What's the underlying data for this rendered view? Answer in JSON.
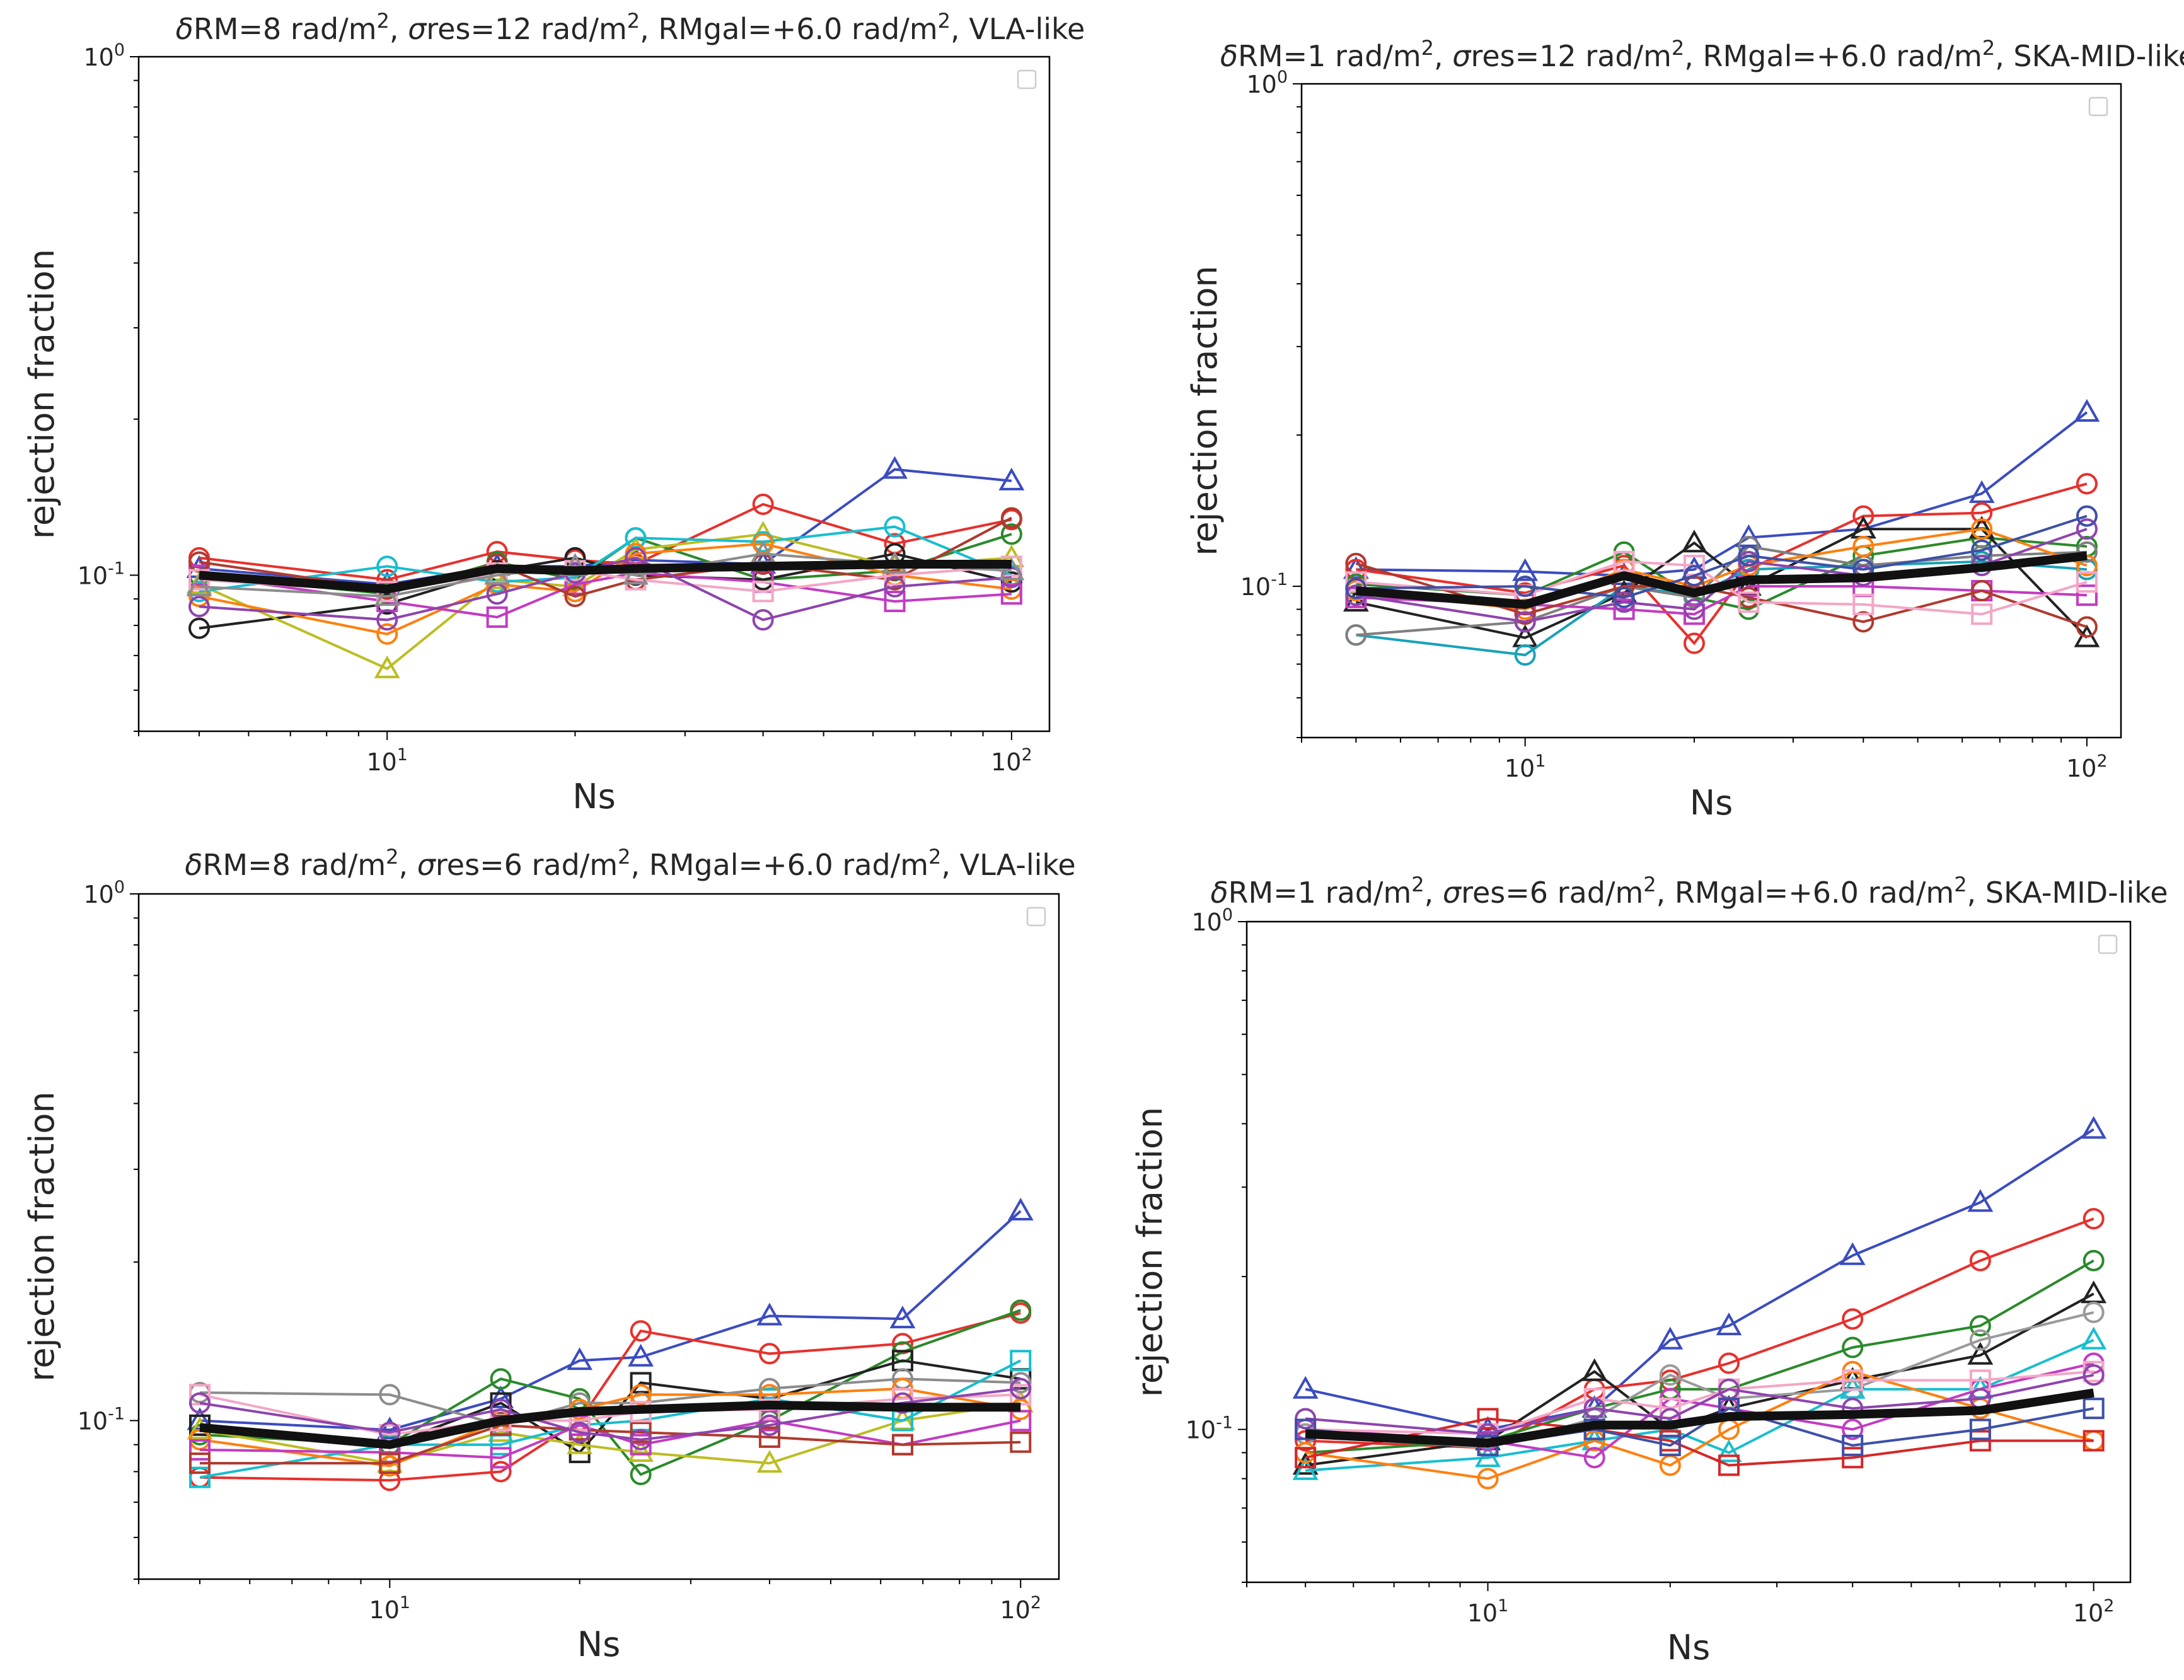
{
  "figure": {
    "description": "Four log-log panels of rejection fraction vs Ns"
  },
  "chart_data": [
    {
      "type": "line",
      "title": "δRM=8 rad/m², σres=12 rad/m², RMgal=+6.0 rad/m², VLA-like",
      "title_parts": {
        "drm": "8",
        "sres": "12",
        "rmgal": "+6.0",
        "telescope": "VLA-like"
      },
      "xlabel": "Ns",
      "ylabel": "rejection fraction",
      "xscale": "log",
      "yscale": "log",
      "xlim": [
        4.0,
        115
      ],
      "ylim": [
        0.05,
        1.0
      ],
      "xtick_labels": [
        "10^1",
        "10^2"
      ],
      "ytick_labels": [
        "10^-1",
        "10^0"
      ],
      "x": [
        5,
        10,
        15,
        20,
        25,
        40,
        65,
        100
      ],
      "series": [
        {
          "name": "blue triangle",
          "color": "#3b4cc0",
          "marker": "triangle",
          "values": [
            0.103,
            0.096,
            0.104,
            0.104,
            0.107,
            0.105,
            0.16,
            0.152
          ]
        },
        {
          "name": "red circle",
          "color": "#e8302c",
          "marker": "circle",
          "values": [
            0.108,
            0.098,
            0.111,
            0.107,
            0.105,
            0.137,
            0.115,
            0.128
          ]
        },
        {
          "name": "green circle",
          "color": "#2a8a2a",
          "marker": "circle",
          "values": [
            0.1,
            0.092,
            0.106,
            0.098,
            0.118,
            0.098,
            0.102,
            0.12
          ]
        },
        {
          "name": "black circle",
          "color": "#222222",
          "marker": "circle",
          "values": [
            0.079,
            0.088,
            0.102,
            0.108,
            0.1,
            0.098,
            0.11,
            0.097
          ]
        },
        {
          "name": "olive triangle",
          "color": "#bcbd22",
          "marker": "triangle",
          "values": [
            0.096,
            0.066,
            0.098,
            0.095,
            0.112,
            0.12,
            0.104,
            0.108
          ]
        },
        {
          "name": "cyan circle",
          "color": "#17becf",
          "marker": "circle",
          "values": [
            0.093,
            0.104,
            0.097,
            0.099,
            0.118,
            0.116,
            0.124,
            0.1
          ]
        },
        {
          "name": "orange circle",
          "color": "#ff7f0e",
          "marker": "circle",
          "values": [
            0.091,
            0.077,
            0.096,
            0.093,
            0.11,
            0.115,
            0.1,
            0.094
          ]
        },
        {
          "name": "magenta square",
          "color": "#c23bc2",
          "marker": "square",
          "values": [
            0.1,
            0.089,
            0.083,
            0.096,
            0.101,
            0.097,
            0.089,
            0.092
          ]
        },
        {
          "name": "brown circle",
          "color": "#b03a2e",
          "marker": "circle",
          "values": [
            0.106,
            0.094,
            0.105,
            0.091,
            0.098,
            0.105,
            0.098,
            0.129
          ]
        },
        {
          "name": "pink square",
          "color": "#f4a6c6",
          "marker": "square",
          "values": [
            0.098,
            0.093,
            0.101,
            0.102,
            0.098,
            0.093,
            0.1,
            0.104
          ]
        },
        {
          "name": "purple circle",
          "color": "#8e44ad",
          "marker": "circle",
          "values": [
            0.087,
            0.082,
            0.092,
            0.101,
            0.108,
            0.082,
            0.095,
            0.099
          ]
        },
        {
          "name": "gray triangle",
          "color": "#8c8c8c",
          "marker": "triangle",
          "values": [
            0.095,
            0.091,
            0.1,
            0.104,
            0.1,
            0.11,
            0.105,
            0.102
          ]
        }
      ],
      "mean": {
        "name": "mean",
        "color": "#111111",
        "values": [
          0.1,
          0.094,
          0.103,
          0.102,
          0.103,
          0.104,
          0.105,
          0.105
        ]
      }
    },
    {
      "type": "line",
      "title": "δRM=1 rad/m², σres=12 rad/m², RMgal=+6.0 rad/m², SKA-MID-like",
      "title_parts": {
        "drm": "1",
        "sres": "12",
        "rmgal": "+6.0",
        "telescope": "SKA-MID-like"
      },
      "xlabel": "Ns",
      "ylabel": "rejection fraction",
      "xscale": "log",
      "yscale": "log",
      "xlim": [
        4.0,
        115
      ],
      "ylim": [
        0.05,
        1.0
      ],
      "xtick_labels": [
        "10^1",
        "10^2"
      ],
      "ytick_labels": [
        "10^-1",
        "10^0"
      ],
      "x": [
        5,
        10,
        15,
        20,
        25,
        40,
        65,
        100
      ],
      "series": [
        {
          "name": "blue triangle",
          "color": "#3b4cc0",
          "marker": "triangle",
          "values": [
            0.108,
            0.107,
            0.105,
            0.108,
            0.125,
            0.13,
            0.153,
            0.222
          ]
        },
        {
          "name": "red circle",
          "color": "#e8302c",
          "marker": "circle",
          "values": [
            0.108,
            0.097,
            0.11,
            0.077,
            0.108,
            0.138,
            0.14,
            0.16
          ]
        },
        {
          "name": "green circle",
          "color": "#2a8a2a",
          "marker": "circle",
          "values": [
            0.101,
            0.096,
            0.117,
            0.095,
            0.09,
            0.115,
            0.125,
            0.12
          ]
        },
        {
          "name": "black triangle",
          "color": "#222222",
          "marker": "triangle",
          "values": [
            0.093,
            0.079,
            0.097,
            0.122,
            0.1,
            0.13,
            0.13,
            0.079
          ]
        },
        {
          "name": "teal circle",
          "color": "#17a2b8",
          "marker": "circle",
          "values": [
            0.08,
            0.073,
            0.1,
            0.096,
            0.108,
            0.11,
            0.112,
            0.108
          ]
        },
        {
          "name": "gray circle",
          "color": "#7f7f7f",
          "marker": "circle",
          "values": [
            0.08,
            0.085,
            0.1,
            0.095,
            0.12,
            0.11,
            0.115,
            0.117
          ]
        },
        {
          "name": "orange circle",
          "color": "#ff7f0e",
          "marker": "circle",
          "values": [
            0.098,
            0.09,
            0.108,
            0.1,
            0.11,
            0.12,
            0.13,
            0.11
          ]
        },
        {
          "name": "magenta square",
          "color": "#c23bc2",
          "marker": "square",
          "values": [
            0.095,
            0.092,
            0.09,
            0.088,
            0.1,
            0.1,
            0.098,
            0.096
          ]
        },
        {
          "name": "brown circle",
          "color": "#b03a2e",
          "marker": "circle",
          "values": [
            0.111,
            0.088,
            0.1,
            0.1,
            0.095,
            0.085,
            0.098,
            0.083
          ]
        },
        {
          "name": "pink square",
          "color": "#f4a6c6",
          "marker": "square",
          "values": [
            0.102,
            0.096,
            0.112,
            0.11,
            0.093,
            0.092,
            0.088,
            0.102
          ]
        },
        {
          "name": "purple circle",
          "color": "#8e44ad",
          "marker": "circle",
          "values": [
            0.096,
            0.085,
            0.093,
            0.09,
            0.112,
            0.105,
            0.11,
            0.13
          ]
        },
        {
          "name": "navy circle",
          "color": "#3d50a8",
          "marker": "circle",
          "values": [
            0.099,
            0.1,
            0.095,
            0.105,
            0.115,
            0.108,
            0.118,
            0.138
          ]
        }
      ],
      "mean": {
        "name": "mean",
        "color": "#111111",
        "values": [
          0.098,
          0.092,
          0.105,
          0.097,
          0.103,
          0.104,
          0.109,
          0.115
        ]
      }
    },
    {
      "type": "line",
      "title": "δRM=8 rad/m², σres=6 rad/m², RMgal=+6.0 rad/m², VLA-like",
      "title_parts": {
        "drm": "8",
        "sres": "6",
        "rmgal": "+6.0",
        "telescope": "VLA-like"
      },
      "xlabel": "Ns",
      "ylabel": "rejection fraction",
      "xscale": "log",
      "yscale": "log",
      "xlim": [
        4.0,
        115
      ],
      "ylim": [
        0.05,
        1.0
      ],
      "xtick_labels": [
        "10^1",
        "10^2"
      ],
      "ytick_labels": [
        "10^-1",
        "10^0"
      ],
      "x": [
        5,
        10,
        15,
        20,
        25,
        40,
        65,
        100
      ],
      "series": [
        {
          "name": "blue triangle",
          "color": "#3b4cc0",
          "marker": "triangle",
          "values": [
            0.1,
            0.096,
            0.11,
            0.13,
            0.132,
            0.158,
            0.156,
            0.25
          ]
        },
        {
          "name": "red circle",
          "color": "#e8302c",
          "marker": "circle",
          "values": [
            0.078,
            0.077,
            0.08,
            0.1,
            0.148,
            0.134,
            0.14,
            0.16
          ]
        },
        {
          "name": "green circle",
          "color": "#2a8a2a",
          "marker": "circle",
          "values": [
            0.094,
            0.09,
            0.12,
            0.11,
            0.079,
            0.1,
            0.135,
            0.162
          ]
        },
        {
          "name": "black square",
          "color": "#222222",
          "marker": "square",
          "values": [
            0.098,
            0.09,
            0.108,
            0.087,
            0.118,
            0.11,
            0.13,
            0.12
          ]
        },
        {
          "name": "olive triangle",
          "color": "#bcbd22",
          "marker": "triangle",
          "values": [
            0.096,
            0.083,
            0.095,
            0.09,
            0.087,
            0.083,
            0.1,
            0.108
          ]
        },
        {
          "name": "gray circle",
          "color": "#8c8c8c",
          "marker": "circle",
          "values": [
            0.113,
            0.112,
            0.098,
            0.108,
            0.108,
            0.115,
            0.12,
            0.118
          ]
        },
        {
          "name": "cyan square",
          "color": "#17becf",
          "marker": "square",
          "values": [
            0.078,
            0.09,
            0.09,
            0.098,
            0.1,
            0.11,
            0.1,
            0.13
          ]
        },
        {
          "name": "orange circle",
          "color": "#ff7f0e",
          "marker": "circle",
          "values": [
            0.092,
            0.082,
            0.1,
            0.105,
            0.112,
            0.112,
            0.115,
            0.105
          ]
        },
        {
          "name": "magenta square",
          "color": "#c23bc2",
          "marker": "square",
          "values": [
            0.088,
            0.087,
            0.085,
            0.098,
            0.09,
            0.1,
            0.09,
            0.1
          ]
        },
        {
          "name": "brown square",
          "color": "#b03a2e",
          "marker": "square",
          "values": [
            0.083,
            0.083,
            0.098,
            0.096,
            0.095,
            0.093,
            0.09,
            0.091
          ]
        },
        {
          "name": "pink square",
          "color": "#f4a6c6",
          "marker": "square",
          "values": [
            0.112,
            0.094,
            0.1,
            0.1,
            0.104,
            0.105,
            0.11,
            0.112
          ]
        },
        {
          "name": "purple circle",
          "color": "#8e44ad",
          "marker": "circle",
          "values": [
            0.108,
            0.095,
            0.105,
            0.095,
            0.092,
            0.098,
            0.108,
            0.115
          ]
        }
      ],
      "mean": {
        "name": "mean",
        "color": "#111111",
        "values": [
          0.097,
          0.09,
          0.1,
          0.104,
          0.105,
          0.107,
          0.106,
          0.106
        ]
      }
    },
    {
      "type": "line",
      "title": "δRM=1 rad/m², σres=6 rad/m², RMgal=+6.0 rad/m², SKA-MID-like",
      "title_parts": {
        "drm": "1",
        "sres": "6",
        "rmgal": "+6.0",
        "telescope": "SKA-MID-like"
      },
      "xlabel": "Ns",
      "ylabel": "rejection fraction",
      "xscale": "log",
      "yscale": "log",
      "xlim": [
        4.0,
        115
      ],
      "ylim": [
        0.05,
        1.0
      ],
      "xtick_labels": [
        "10^1",
        "10^2"
      ],
      "ytick_labels": [
        "10^-1",
        "10^0"
      ],
      "x": [
        5,
        10,
        15,
        20,
        25,
        40,
        65,
        100
      ],
      "series": [
        {
          "name": "blue triangle",
          "color": "#3b4cc0",
          "marker": "triangle",
          "values": [
            0.12,
            0.1,
            0.11,
            0.15,
            0.16,
            0.22,
            0.28,
            0.39
          ]
        },
        {
          "name": "red circle",
          "color": "#e8302c",
          "marker": "circle",
          "values": [
            0.095,
            0.092,
            0.12,
            0.125,
            0.135,
            0.165,
            0.215,
            0.26
          ]
        },
        {
          "name": "green circle",
          "color": "#2a8a2a",
          "marker": "circle",
          "values": [
            0.09,
            0.095,
            0.11,
            0.12,
            0.12,
            0.145,
            0.16,
            0.215
          ]
        },
        {
          "name": "black triangle",
          "color": "#222222",
          "marker": "triangle",
          "values": [
            0.085,
            0.095,
            0.13,
            0.1,
            0.11,
            0.125,
            0.14,
            0.185
          ]
        },
        {
          "name": "gray circle",
          "color": "#9a9a9a",
          "marker": "circle",
          "values": [
            0.098,
            0.092,
            0.105,
            0.128,
            0.115,
            0.12,
            0.15,
            0.17
          ]
        },
        {
          "name": "cyan triangle",
          "color": "#17becf",
          "marker": "triangle",
          "values": [
            0.083,
            0.088,
            0.095,
            0.1,
            0.09,
            0.12,
            0.12,
            0.15
          ]
        },
        {
          "name": "orange circle",
          "color": "#ff7f0e",
          "marker": "circle",
          "values": [
            0.09,
            0.08,
            0.095,
            0.085,
            0.1,
            0.13,
            0.11,
            0.095
          ]
        },
        {
          "name": "magenta circle",
          "color": "#c23bc2",
          "marker": "circle",
          "values": [
            0.1,
            0.095,
            0.088,
            0.115,
            0.11,
            0.1,
            0.12,
            0.135
          ]
        },
        {
          "name": "red square",
          "color": "#d62728",
          "marker": "square",
          "values": [
            0.088,
            0.105,
            0.1,
            0.095,
            0.085,
            0.088,
            0.095,
            0.095
          ]
        },
        {
          "name": "pink square",
          "color": "#f4a6c6",
          "marker": "square",
          "values": [
            0.1,
            0.098,
            0.115,
            0.11,
            0.12,
            0.125,
            0.125,
            0.13
          ]
        },
        {
          "name": "purple circle",
          "color": "#8e44ad",
          "marker": "circle",
          "values": [
            0.105,
            0.098,
            0.11,
            0.105,
            0.12,
            0.11,
            0.115,
            0.128
          ]
        },
        {
          "name": "navy square",
          "color": "#3d50a8",
          "marker": "square",
          "values": [
            0.1,
            0.093,
            0.1,
            0.093,
            0.11,
            0.093,
            0.1,
            0.11
          ]
        }
      ],
      "mean": {
        "name": "mean",
        "color": "#111111",
        "values": [
          0.098,
          0.094,
          0.102,
          0.102,
          0.106,
          0.107,
          0.109,
          0.118
        ]
      }
    }
  ]
}
